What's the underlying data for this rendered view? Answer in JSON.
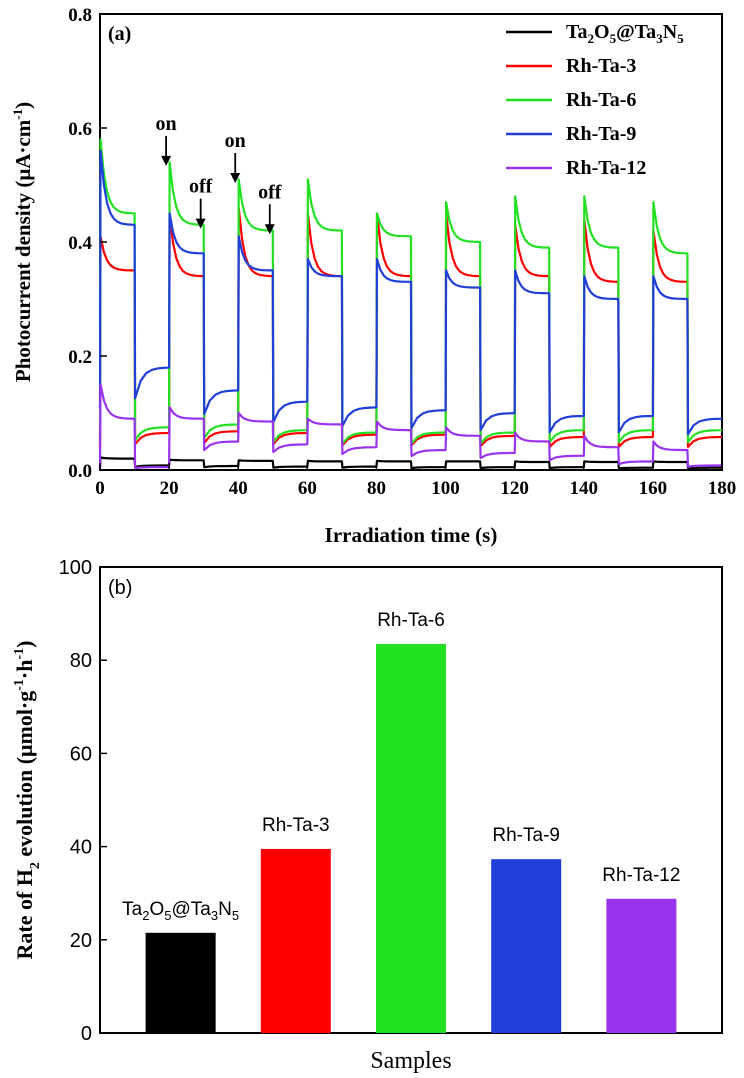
{
  "chart_data": [
    {
      "type": "line",
      "panel_label": "(a)",
      "xlabel": "Irradiation time (s)",
      "ylabel": "Photocurrent density (μA·cm⁻¹)",
      "ylabel_parts": [
        "Photocurrent density (μA·cm",
        "-1",
        ")"
      ],
      "xlim": [
        0,
        180
      ],
      "ylim": [
        0,
        0.8
      ],
      "xticks": [
        0,
        20,
        40,
        60,
        80,
        100,
        120,
        140,
        160,
        180
      ],
      "yticks": [
        0.0,
        0.2,
        0.4,
        0.6,
        0.8
      ],
      "ytick_labels": [
        "0.0",
        "0.2",
        "0.4",
        "0.6",
        "0.8"
      ],
      "light_cycle": {
        "period_s": 20,
        "on_duration_s": 10,
        "on_times_s": [
          0,
          20,
          40,
          60,
          80,
          100,
          120,
          140,
          160
        ]
      },
      "annotations": [
        {
          "text": "on",
          "x": 20,
          "y": 0.53
        },
        {
          "text": "off",
          "x": 30,
          "y": 0.42
        },
        {
          "text": "on",
          "x": 40,
          "y": 0.5
        },
        {
          "text": "off",
          "x": 50,
          "y": 0.41
        }
      ],
      "legend_position": "top-right",
      "series": [
        {
          "name": "Ta2O5@Ta3N5",
          "legend_parts": [
            [
              "Ta",
              ""
            ],
            [
              "2",
              "sub"
            ],
            [
              "O",
              ""
            ],
            [
              "5",
              "sub"
            ],
            [
              "@Ta",
              ""
            ],
            [
              "3",
              "sub"
            ],
            [
              "N",
              ""
            ],
            [
              "5",
              "sub"
            ]
          ],
          "color": "#000000",
          "spike": [
            0.022,
            0.018,
            0.017,
            0.016,
            0.016,
            0.015,
            0.015,
            0.015,
            0.015
          ],
          "on": [
            0.02,
            0.017,
            0.016,
            0.015,
            0.015,
            0.015,
            0.014,
            0.014,
            0.014
          ],
          "off": [
            0.008,
            0.007,
            0.006,
            0.006,
            0.005,
            0.005,
            0.005,
            0.004,
            0.004
          ]
        },
        {
          "name": "Rh-Ta-3",
          "color": "#ff0000",
          "spike": [
            0.41,
            0.45,
            0.46,
            0.45,
            0.45,
            0.45,
            0.43,
            0.44,
            0.42
          ],
          "on": [
            0.35,
            0.34,
            0.34,
            0.34,
            0.34,
            0.34,
            0.34,
            0.33,
            0.33
          ],
          "off": [
            0.065,
            0.068,
            0.065,
            0.062,
            0.062,
            0.06,
            0.058,
            0.058,
            0.058
          ]
        },
        {
          "name": "Rh-Ta-6",
          "color": "#22e022",
          "spike": [
            0.58,
            0.54,
            0.51,
            0.51,
            0.45,
            0.47,
            0.48,
            0.48,
            0.47
          ],
          "on": [
            0.45,
            0.43,
            0.42,
            0.42,
            0.41,
            0.4,
            0.39,
            0.39,
            0.38
          ],
          "off": [
            0.075,
            0.08,
            0.07,
            0.066,
            0.066,
            0.066,
            0.07,
            0.07,
            0.07
          ]
        },
        {
          "name": "Rh-Ta-9",
          "color": "#1f3fd8",
          "spike": [
            0.56,
            0.45,
            0.41,
            0.37,
            0.37,
            0.35,
            0.35,
            0.34,
            0.34
          ],
          "on": [
            0.43,
            0.38,
            0.35,
            0.34,
            0.33,
            0.32,
            0.31,
            0.3,
            0.3
          ],
          "off": [
            0.18,
            0.14,
            0.12,
            0.11,
            0.105,
            0.1,
            0.095,
            0.095,
            0.09
          ]
        },
        {
          "name": "Rh-Ta-12",
          "color": "#9933ee",
          "spike": [
            0.15,
            0.11,
            0.1,
            0.09,
            0.085,
            0.075,
            0.065,
            0.06,
            0.05
          ],
          "on": [
            0.09,
            0.09,
            0.085,
            0.08,
            0.07,
            0.06,
            0.05,
            0.04,
            0.035
          ],
          "off": [
            0.005,
            0.05,
            0.045,
            0.04,
            0.035,
            0.03,
            0.025,
            0.015,
            0.008
          ]
        }
      ]
    },
    {
      "type": "bar",
      "panel_label": "(b)",
      "xlabel": "Samples",
      "ylabel_parts": [
        "Rate of H",
        "2",
        " evolution (μmol·g",
        "-1",
        "·h",
        "-1",
        ")"
      ],
      "ylabel": "Rate of H2 evolution (μmol·g⁻¹·h⁻¹)",
      "ylim": [
        0,
        100
      ],
      "yticks": [
        0,
        20,
        40,
        60,
        80,
        100
      ],
      "categories": [
        "Ta2O5@Ta3N5",
        "Rh-Ta-3",
        "Rh-Ta-6",
        "Rh-Ta-9",
        "Rh-Ta-12"
      ],
      "category_parts": [
        [
          [
            "Ta",
            ""
          ],
          [
            "2",
            "sub"
          ],
          [
            "O",
            ""
          ],
          [
            "5",
            "sub"
          ],
          [
            "@Ta",
            ""
          ],
          [
            "3",
            "sub"
          ],
          [
            "N",
            ""
          ],
          [
            "5",
            "sub"
          ]
        ],
        [
          [
            "Rh-Ta-3",
            ""
          ]
        ],
        [
          [
            "Rh-Ta-6",
            ""
          ]
        ],
        [
          [
            "Rh-Ta-9",
            ""
          ]
        ],
        [
          [
            "Rh-Ta-12",
            ""
          ]
        ]
      ],
      "values": [
        21.5,
        39.5,
        83.5,
        37.3,
        28.8
      ],
      "colors": [
        "#000000",
        "#ff0000",
        "#22e022",
        "#1f3fd8",
        "#9933ee"
      ]
    }
  ]
}
